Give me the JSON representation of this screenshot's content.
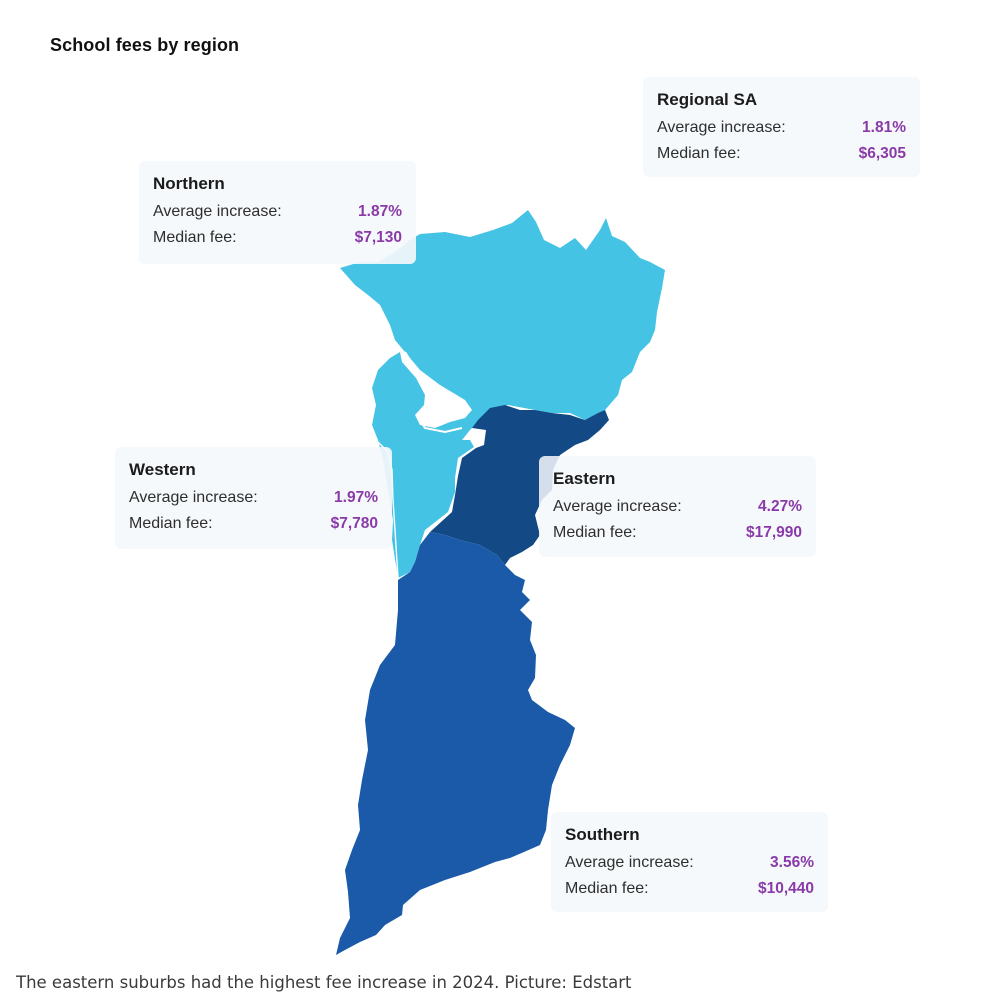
{
  "title": "School fees by region",
  "caption": "The eastern suburbs had the highest fee increase in 2024. Picture: Edstart",
  "labels": {
    "avg": "Average increase:",
    "median": "Median fee:"
  },
  "regions": {
    "regional": {
      "name": "Regional SA",
      "avg": "1.81%",
      "median": "$6,305"
    },
    "northern": {
      "name": "Northern",
      "avg": "1.87%",
      "median": "$7,130",
      "color": "#45c3e4"
    },
    "western": {
      "name": "Western",
      "avg": "1.97%",
      "median": "$7,780",
      "color": "#45c3e4"
    },
    "eastern": {
      "name": "Eastern",
      "avg": "4.27%",
      "median": "$17,990",
      "color": "#134a86"
    },
    "southern": {
      "name": "Southern",
      "avg": "3.56%",
      "median": "$10,440",
      "color": "#1a5aa8"
    }
  },
  "colors": {
    "value": "#8a3aa8",
    "card": "#f4f8fb"
  }
}
